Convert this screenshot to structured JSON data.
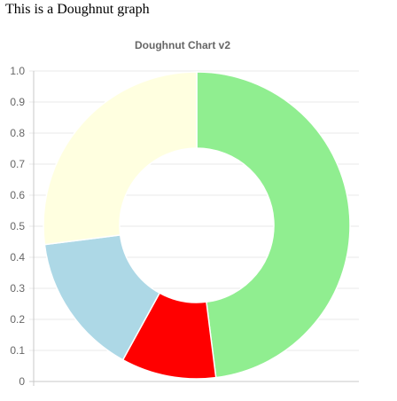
{
  "page": {
    "heading": "This is a Doughnut graph"
  },
  "chart_data": {
    "type": "doughnut",
    "title": "Doughnut Chart v2",
    "xlabel": "",
    "ylabel": "",
    "ylim": [
      0,
      1.0
    ],
    "y_ticks": [
      "0",
      "0.1",
      "0.2",
      "0.3",
      "0.4",
      "0.5",
      "0.6",
      "0.7",
      "0.8",
      "0.9",
      "1.0"
    ],
    "grid": true,
    "legend": "none",
    "start_angle_deg": 0,
    "slices": [
      {
        "value": 0.48,
        "color": "#90ee90"
      },
      {
        "value": 0.1,
        "color": "#ff0000"
      },
      {
        "value": 0.15,
        "color": "#add8e6"
      },
      {
        "value": 0.27,
        "color": "#ffffe0"
      }
    ]
  }
}
